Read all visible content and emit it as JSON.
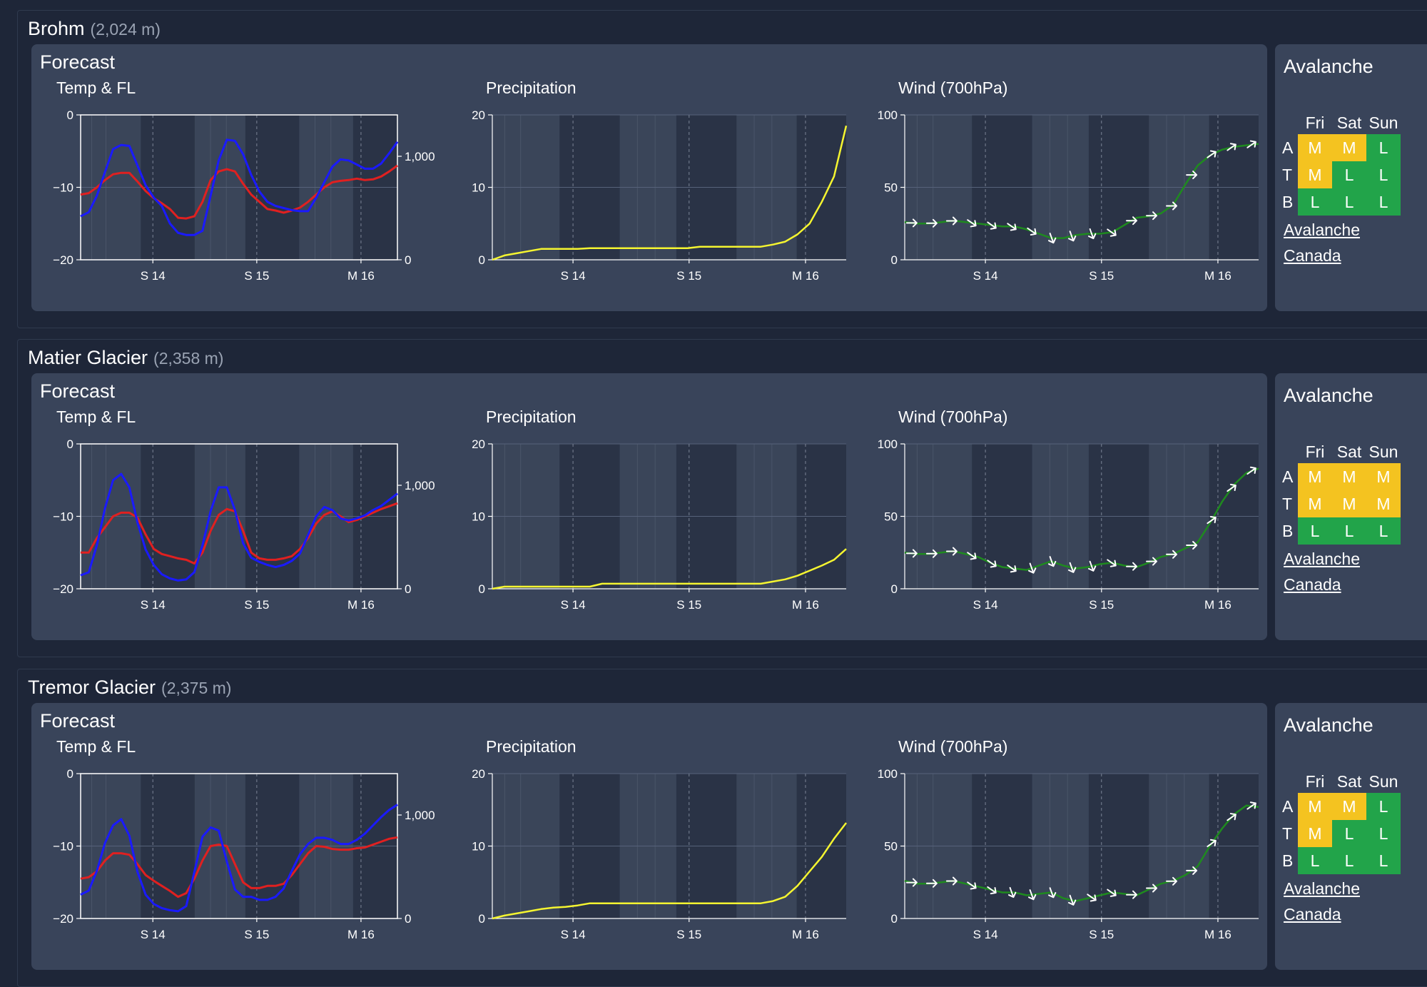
{
  "sites": [
    {
      "name": "Brohm",
      "elevation": "(2,024 m)",
      "forecast_label": "Forecast",
      "avalanche": {
        "title": "Avalanche",
        "days": [
          "Fri",
          "Sat",
          "Sun"
        ],
        "rows": [
          {
            "label": "A",
            "values": [
              "M",
              "M",
              "L"
            ]
          },
          {
            "label": "T",
            "values": [
              "M",
              "L",
              "L"
            ]
          },
          {
            "label": "B",
            "values": [
              "L",
              "L",
              "L"
            ]
          }
        ],
        "link_text": "Avalanche Canada"
      }
    },
    {
      "name": "Matier Glacier",
      "elevation": "(2,358 m)",
      "forecast_label": "Forecast",
      "avalanche": {
        "title": "Avalanche",
        "days": [
          "Fri",
          "Sat",
          "Sun"
        ],
        "rows": [
          {
            "label": "A",
            "values": [
              "M",
              "M",
              "M"
            ]
          },
          {
            "label": "T",
            "values": [
              "M",
              "M",
              "M"
            ]
          },
          {
            "label": "B",
            "values": [
              "L",
              "L",
              "L"
            ]
          }
        ],
        "link_text": "Avalanche Canada"
      }
    },
    {
      "name": "Tremor Glacier",
      "elevation": "(2,375 m)",
      "forecast_label": "Forecast",
      "avalanche": {
        "title": "Avalanche",
        "days": [
          "Fri",
          "Sat",
          "Sun"
        ],
        "rows": [
          {
            "label": "A",
            "values": [
              "M",
              "M",
              "L"
            ]
          },
          {
            "label": "T",
            "values": [
              "M",
              "L",
              "L"
            ]
          },
          {
            "label": "B",
            "values": [
              "L",
              "L",
              "L"
            ]
          }
        ],
        "link_text": "Avalanche Canada"
      }
    }
  ],
  "colors": {
    "temp": "#e02020",
    "freezing_level": "#1a1aff",
    "precip": "#f5f530",
    "wind": "#1f8a1f",
    "avy_M": "#f4c320",
    "avy_L": "#22a44a"
  },
  "chart_data": [
    {
      "site": "Brohm",
      "type": "line",
      "title": "Temp & FL",
      "x_tick_labels": [
        "S 14",
        "S 15",
        "M 16"
      ],
      "y_left_ticks": [
        "0",
        "−10",
        "−20"
      ],
      "ylim_left": [
        -20,
        0
      ],
      "y_right_ticks": [
        "1,000",
        "0"
      ],
      "ylim_right": [
        0,
        1400
      ],
      "series": [
        {
          "name": "Temperature",
          "axis": "left",
          "values": [
            -11,
            -10.8,
            -10,
            -9,
            -8.2,
            -8,
            -8,
            -9.2,
            -10.5,
            -11.5,
            -12.2,
            -13,
            -14.2,
            -14.3,
            -14,
            -12,
            -9,
            -7.8,
            -7.5,
            -7.8,
            -9.5,
            -11,
            -12,
            -13,
            -13.2,
            -13.5,
            -13.2,
            -12.8,
            -12,
            -11,
            -10,
            -9.3,
            -9.1,
            -9,
            -8.8,
            -9,
            -8.9,
            -8.5,
            -7.8,
            -7
          ]
        },
        {
          "name": "Freezing level",
          "axis": "right",
          "values": [
            420,
            460,
            620,
            850,
            1070,
            1110,
            1100,
            910,
            720,
            600,
            520,
            350,
            260,
            240,
            240,
            280,
            620,
            960,
            1160,
            1150,
            1020,
            820,
            660,
            560,
            520,
            500,
            480,
            470,
            470,
            600,
            750,
            900,
            970,
            960,
            920,
            880,
            880,
            930,
            1030,
            1140
          ]
        }
      ]
    },
    {
      "site": "Brohm",
      "type": "line",
      "title": "Precipitation",
      "x_tick_labels": [
        "S 14",
        "S 15",
        "M 16"
      ],
      "y_ticks": [
        "20",
        "10",
        "0"
      ],
      "ylim": [
        0,
        20
      ],
      "x": [
        0,
        1,
        2,
        3,
        4,
        5,
        6,
        7,
        8,
        9,
        10,
        11,
        12,
        13,
        14,
        15,
        16,
        17,
        18,
        19,
        20,
        21,
        22,
        23,
        24,
        25,
        26,
        27,
        28,
        29
      ],
      "values": [
        0,
        0.6,
        0.9,
        1.2,
        1.5,
        1.5,
        1.5,
        1.5,
        1.6,
        1.6,
        1.6,
        1.6,
        1.6,
        1.6,
        1.6,
        1.6,
        1.6,
        1.8,
        1.8,
        1.8,
        1.8,
        1.8,
        1.8,
        2.1,
        2.5,
        3.5,
        5.0,
        8.0,
        11.5,
        18.5
      ]
    },
    {
      "site": "Brohm",
      "type": "line",
      "title": "Wind (700hPa)",
      "x_tick_labels": [
        "S 14",
        "S 15",
        "M 16"
      ],
      "y_ticks": [
        "100",
        "50",
        "0"
      ],
      "ylim": [
        0,
        100
      ],
      "values": [
        26,
        25,
        25,
        26,
        27,
        26,
        25,
        24,
        23,
        23,
        21,
        18,
        15,
        15,
        17,
        18,
        18,
        19,
        24,
        29,
        30,
        32,
        38,
        52,
        65,
        72,
        76,
        78,
        79,
        80
      ],
      "arrow_direction": [
        "right",
        "right",
        "right",
        "down-right",
        "down-right",
        "down-right",
        "down-right",
        "down",
        "down",
        "down",
        "down-right",
        "right",
        "right",
        "right",
        "right",
        "up-right",
        "up-right",
        "up-right"
      ]
    },
    {
      "site": "Matier Glacier",
      "type": "line",
      "title": "Temp & FL",
      "x_tick_labels": [
        "S 14",
        "S 15",
        "M 16"
      ],
      "y_left_ticks": [
        "0",
        "−10",
        "−20"
      ],
      "ylim_left": [
        -20,
        0
      ],
      "y_right_ticks": [
        "1,000",
        "0"
      ],
      "ylim_right": [
        0,
        1400
      ],
      "series": [
        {
          "name": "Temperature",
          "axis": "left",
          "values": [
            -15,
            -15,
            -13,
            -11.5,
            -10,
            -9.5,
            -9.5,
            -10.2,
            -12.5,
            -14.5,
            -15.2,
            -15.5,
            -15.8,
            -16,
            -16.5,
            -15,
            -12,
            -9.8,
            -9,
            -9.3,
            -12,
            -15,
            -15.8,
            -16,
            -16,
            -15.8,
            -15.5,
            -14.5,
            -13,
            -11,
            -9.8,
            -9.3,
            -10,
            -10.8,
            -10.5,
            -10,
            -9.5,
            -9,
            -8.6,
            -8.2
          ]
        },
        {
          "name": "Freezing level",
          "axis": "right",
          "values": [
            130,
            160,
            420,
            780,
            1050,
            1110,
            980,
            640,
            380,
            230,
            140,
            100,
            80,
            90,
            160,
            420,
            750,
            980,
            980,
            760,
            440,
            300,
            260,
            230,
            210,
            230,
            270,
            340,
            520,
            700,
            790,
            760,
            680,
            660,
            680,
            710,
            760,
            800,
            860,
            920
          ]
        }
      ]
    },
    {
      "site": "Matier Glacier",
      "type": "line",
      "title": "Precipitation",
      "x_tick_labels": [
        "S 14",
        "S 15",
        "M 16"
      ],
      "y_ticks": [
        "20",
        "10",
        "0"
      ],
      "ylim": [
        0,
        20
      ],
      "x": [
        0,
        1,
        2,
        3,
        4,
        5,
        6,
        7,
        8,
        9,
        10,
        11,
        12,
        13,
        14,
        15,
        16,
        17,
        18,
        19,
        20,
        21,
        22,
        23,
        24,
        25,
        26,
        27,
        28,
        29
      ],
      "values": [
        0,
        0.3,
        0.3,
        0.3,
        0.3,
        0.3,
        0.3,
        0.3,
        0.3,
        0.7,
        0.7,
        0.7,
        0.7,
        0.7,
        0.7,
        0.7,
        0.7,
        0.7,
        0.7,
        0.7,
        0.7,
        0.7,
        0.7,
        1.0,
        1.3,
        1.8,
        2.5,
        3.2,
        4.0,
        5.5
      ]
    },
    {
      "site": "Matier Glacier",
      "type": "line",
      "title": "Wind (700hPa)",
      "x_tick_labels": [
        "S 14",
        "S 15",
        "M 16"
      ],
      "y_ticks": [
        "100",
        "50",
        "0"
      ],
      "ylim": [
        0,
        100
      ],
      "values": [
        25,
        24,
        24,
        25,
        26,
        24,
        22,
        18,
        15,
        14,
        13,
        16,
        19,
        16,
        14,
        15,
        17,
        18,
        16,
        15,
        18,
        22,
        24,
        28,
        32,
        45,
        60,
        72,
        80,
        83
      ],
      "arrow_direction": [
        "right",
        "right",
        "right",
        "down-right",
        "down-right",
        "down-right",
        "down",
        "down",
        "down",
        "down",
        "down-right",
        "right",
        "right",
        "right",
        "right",
        "up-right",
        "up-right",
        "up-right"
      ]
    },
    {
      "site": "Tremor Glacier",
      "type": "line",
      "title": "Temp & FL",
      "x_tick_labels": [
        "S 14",
        "S 15",
        "M 16"
      ],
      "y_left_ticks": [
        "0",
        "−10",
        "−20"
      ],
      "ylim_left": [
        -20,
        0
      ],
      "y_right_ticks": [
        "1,000",
        "0"
      ],
      "ylim_right": [
        0,
        1400
      ],
      "series": [
        {
          "name": "Temperature",
          "axis": "left",
          "values": [
            -14.5,
            -14.3,
            -13.5,
            -12,
            -11,
            -11,
            -11.2,
            -12.5,
            -14,
            -14.8,
            -15.5,
            -16.2,
            -17,
            -16.5,
            -14.5,
            -12,
            -10,
            -9.8,
            -10,
            -12.5,
            -15,
            -15.8,
            -15.8,
            -15.5,
            -15.5,
            -15.2,
            -14,
            -12.5,
            -11,
            -10,
            -10.1,
            -10.4,
            -10.5,
            -10.5,
            -10.3,
            -10.2,
            -9.8,
            -9.4,
            -9,
            -8.8
          ]
        },
        {
          "name": "Freezing level",
          "axis": "right",
          "values": [
            230,
            270,
            460,
            730,
            900,
            960,
            800,
            450,
            230,
            140,
            100,
            80,
            70,
            120,
            450,
            790,
            880,
            850,
            550,
            280,
            210,
            210,
            180,
            180,
            210,
            290,
            460,
            620,
            720,
            780,
            780,
            760,
            720,
            720,
            760,
            820,
            900,
            980,
            1050,
            1100
          ]
        }
      ]
    },
    {
      "site": "Tremor Glacier",
      "type": "line",
      "title": "Precipitation",
      "x_tick_labels": [
        "S 14",
        "S 15",
        "M 16"
      ],
      "y_ticks": [
        "20",
        "10",
        "0"
      ],
      "ylim": [
        0,
        20
      ],
      "x": [
        0,
        1,
        2,
        3,
        4,
        5,
        6,
        7,
        8,
        9,
        10,
        11,
        12,
        13,
        14,
        15,
        16,
        17,
        18,
        19,
        20,
        21,
        22,
        23,
        24,
        25,
        26,
        27,
        28,
        29
      ],
      "values": [
        0,
        0.4,
        0.7,
        1.0,
        1.3,
        1.5,
        1.6,
        1.8,
        2.1,
        2.1,
        2.1,
        2.1,
        2.1,
        2.1,
        2.1,
        2.1,
        2.1,
        2.1,
        2.1,
        2.1,
        2.1,
        2.1,
        2.1,
        2.4,
        3.0,
        4.5,
        6.5,
        8.5,
        11,
        13.2
      ]
    },
    {
      "site": "Tremor Glacier",
      "type": "line",
      "title": "Wind (700hPa)",
      "x_tick_labels": [
        "S 14",
        "S 15",
        "M 16"
      ],
      "y_ticks": [
        "100",
        "50",
        "0"
      ],
      "ylim": [
        0,
        100
      ],
      "values": [
        26,
        24,
        24,
        25,
        26,
        24,
        22,
        20,
        18,
        18,
        16,
        17,
        18,
        14,
        12,
        14,
        16,
        18,
        17,
        16,
        20,
        24,
        26,
        30,
        36,
        50,
        62,
        72,
        78,
        77
      ],
      "arrow_direction": [
        "right",
        "right",
        "right",
        "down-right",
        "down-right",
        "down",
        "down",
        "down",
        "down",
        "down-right",
        "down-right",
        "right",
        "right",
        "right",
        "right",
        "up-right",
        "up-right",
        "up-right"
      ]
    }
  ]
}
